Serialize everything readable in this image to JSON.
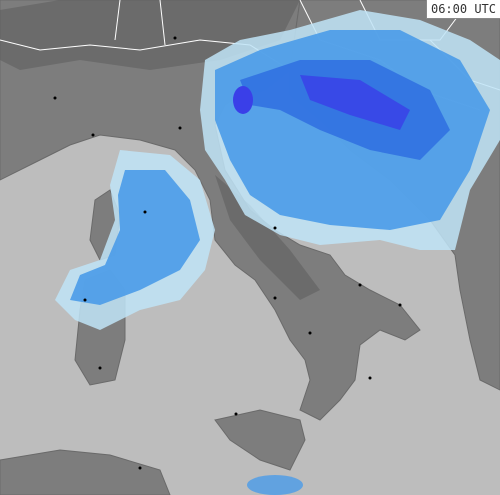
{
  "timestamp": "06:00 UTC"
}
